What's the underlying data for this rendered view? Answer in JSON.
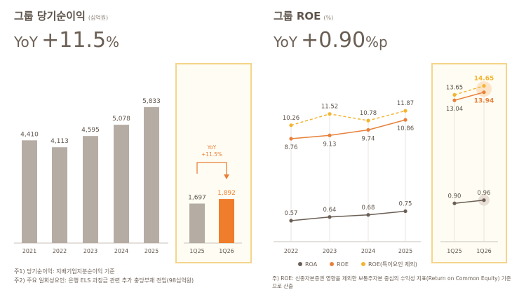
{
  "left": {
    "title": "그룹 당기순이익",
    "unit": "(십억원)",
    "yoy_label": "YoY",
    "yoy_value": "+11.5",
    "yoy_suffix": "%",
    "notes": [
      "주1) 당기순이익: 지배기업지분순이익 기준",
      "주2) 주요 일회성요인: 은행 ELS 과징금 관련 추가 충당부채 전입(98십억원)"
    ]
  },
  "right": {
    "title": "그룹 ROE",
    "unit": "(%)",
    "yoy_label": "YoY",
    "yoy_value": "+0.90",
    "yoy_suffix": "%p",
    "note": "주) ROE: 신종자본증권 영향을 제외한 보통주자본 중심의 수익성 지표(Return on Common Equity) 기준으로 산출"
  },
  "chart_data": [
    {
      "type": "bar",
      "categories": [
        "2021",
        "2022",
        "2023",
        "2024",
        "2025",
        "1Q25",
        "1Q26"
      ],
      "values": [
        4410,
        4113,
        4595,
        5078,
        5833,
        1697,
        1892
      ],
      "labels": [
        "4,410",
        "4,113",
        "4,595",
        "5,078",
        "5,833",
        "1,697",
        "1,892"
      ],
      "annotation": {
        "line1": "YoY",
        "line2": "+11.5%"
      },
      "colors": {
        "bar": "#b5aca3",
        "highlight": "#ef7d2b"
      }
    },
    {
      "type": "line",
      "categories": [
        "2022",
        "2023",
        "2024",
        "2025",
        "1Q25",
        "1Q26"
      ],
      "series": [
        {
          "name": "ROA",
          "values": [
            0.57,
            0.64,
            0.68,
            0.75,
            0.9,
            0.96
          ],
          "labels": [
            "0.57",
            "0.64",
            "0.68",
            "0.75",
            "0.90",
            "0.96"
          ],
          "color": "#6b5f55"
        },
        {
          "name": "ROE",
          "values": [
            8.76,
            9.13,
            9.74,
            10.86,
            13.04,
            13.94
          ],
          "labels": [
            "8.76",
            "9.13",
            "9.74",
            "10.86",
            "13.04",
            "13.94"
          ],
          "color": "#e8803a"
        },
        {
          "name": "ROE(특이요인 제외)",
          "values": [
            10.26,
            11.52,
            10.78,
            11.87,
            13.65,
            14.65
          ],
          "labels": [
            "10.26",
            "11.52",
            "10.78",
            "11.87",
            "13.65",
            "14.65"
          ],
          "color": "#f3b432",
          "dashed": true
        }
      ]
    }
  ]
}
